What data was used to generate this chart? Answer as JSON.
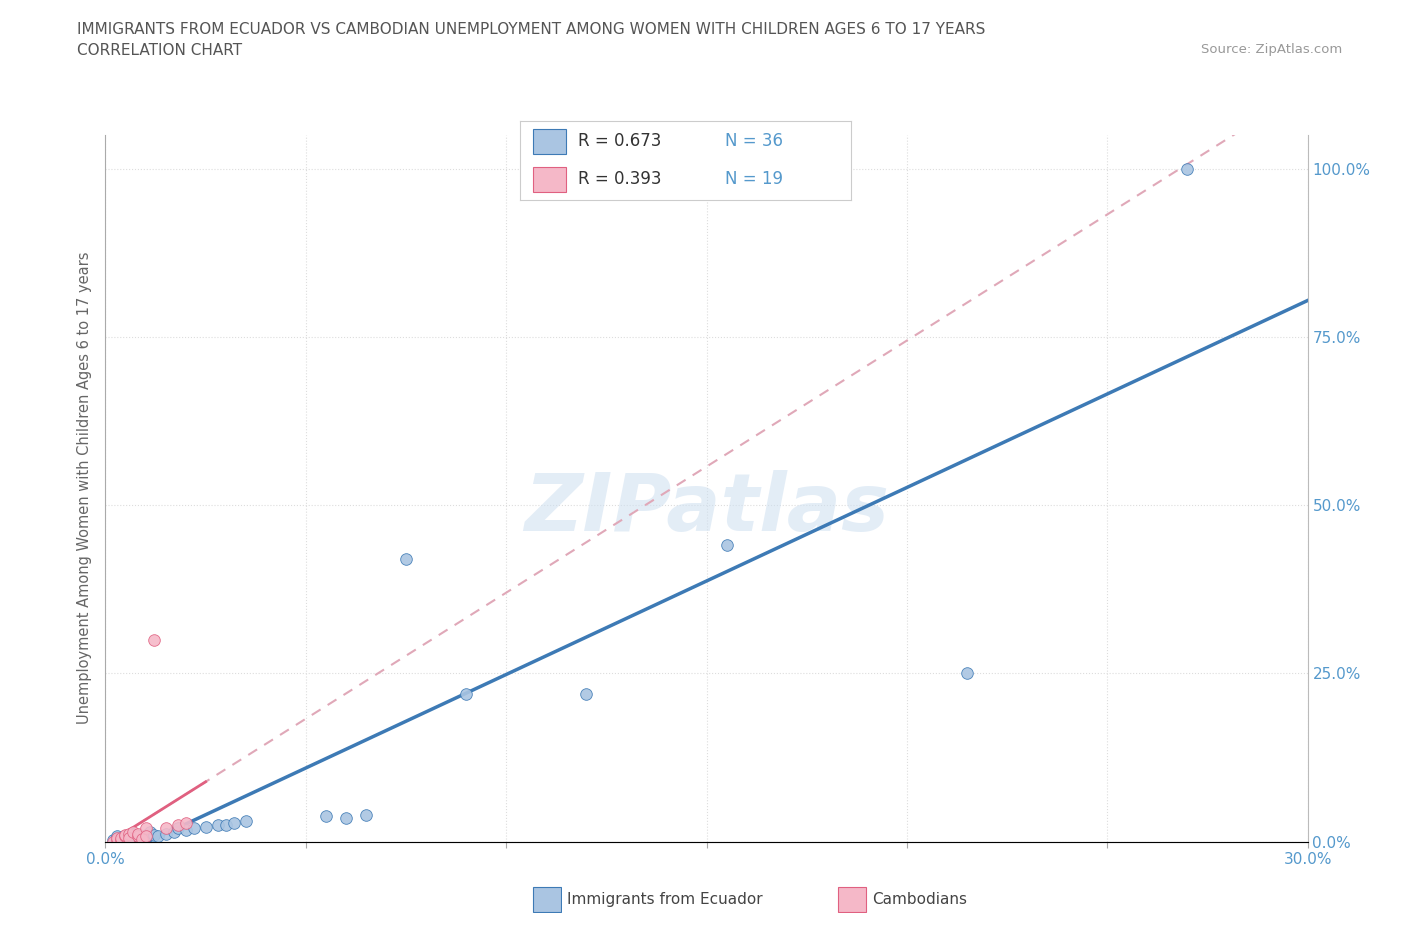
{
  "title_line1": "IMMIGRANTS FROM ECUADOR VS CAMBODIAN UNEMPLOYMENT AMONG WOMEN WITH CHILDREN AGES 6 TO 17 YEARS",
  "title_line2": "CORRELATION CHART",
  "source_text": "Source: ZipAtlas.com",
  "ylabel_label": "Unemployment Among Women with Children Ages 6 to 17 years",
  "watermark_text": "ZIPatlas",
  "ecuador_R": "0.673",
  "ecuador_N": "36",
  "cambodian_R": "0.393",
  "cambodian_N": "19",
  "ecuador_color": "#aac5e2",
  "cambodian_color": "#f5b8c8",
  "ecuador_line_color": "#3d7ab5",
  "cambodian_line_color": "#e06080",
  "dashed_line_color": "#e0a8b8",
  "xlim": [
    0.0,
    0.3
  ],
  "ylim": [
    0.0,
    1.05
  ],
  "x_tick_pos": [
    0.0,
    0.05,
    0.1,
    0.15,
    0.2,
    0.25,
    0.3
  ],
  "y_tick_pos": [
    0.0,
    0.25,
    0.5,
    0.75,
    1.0
  ],
  "x_tick_labels": [
    "0.0%",
    "",
    "",
    "",
    "",
    "",
    "30.0%"
  ],
  "y_tick_labels": [
    "0.0%",
    "25.0%",
    "50.0%",
    "75.0%",
    "100.0%"
  ],
  "background_color": "#ffffff",
  "grid_color": "#dddddd",
  "tick_label_color": "#5599cc",
  "ecuador_points": [
    [
      0.002,
      0.002
    ],
    [
      0.003,
      0.005
    ],
    [
      0.003,
      0.008
    ],
    [
      0.004,
      0.003
    ],
    [
      0.004,
      0.006
    ],
    [
      0.005,
      0.002
    ],
    [
      0.005,
      0.008
    ],
    [
      0.006,
      0.005
    ],
    [
      0.006,
      0.01
    ],
    [
      0.007,
      0.004
    ],
    [
      0.007,
      0.012
    ],
    [
      0.008,
      0.008
    ],
    [
      0.009,
      0.006
    ],
    [
      0.01,
      0.01
    ],
    [
      0.011,
      0.015
    ],
    [
      0.012,
      0.01
    ],
    [
      0.013,
      0.008
    ],
    [
      0.015,
      0.012
    ],
    [
      0.017,
      0.015
    ],
    [
      0.018,
      0.02
    ],
    [
      0.02,
      0.018
    ],
    [
      0.022,
      0.02
    ],
    [
      0.025,
      0.022
    ],
    [
      0.028,
      0.025
    ],
    [
      0.03,
      0.025
    ],
    [
      0.032,
      0.028
    ],
    [
      0.035,
      0.03
    ],
    [
      0.055,
      0.038
    ],
    [
      0.06,
      0.035
    ],
    [
      0.065,
      0.04
    ],
    [
      0.075,
      0.42
    ],
    [
      0.09,
      0.22
    ],
    [
      0.12,
      0.22
    ],
    [
      0.155,
      0.44
    ],
    [
      0.215,
      0.25
    ],
    [
      0.27,
      1.0
    ]
  ],
  "cambodian_points": [
    [
      0.002,
      0.0
    ],
    [
      0.003,
      0.003
    ],
    [
      0.003,
      0.006
    ],
    [
      0.004,
      0.002
    ],
    [
      0.004,
      0.005
    ],
    [
      0.005,
      0.008
    ],
    [
      0.005,
      0.01
    ],
    [
      0.006,
      0.012
    ],
    [
      0.006,
      0.005
    ],
    [
      0.007,
      0.015
    ],
    [
      0.008,
      0.008
    ],
    [
      0.008,
      0.012
    ],
    [
      0.009,
      0.004
    ],
    [
      0.01,
      0.02
    ],
    [
      0.01,
      0.008
    ],
    [
      0.012,
      0.3
    ],
    [
      0.015,
      0.02
    ],
    [
      0.018,
      0.025
    ],
    [
      0.02,
      0.028
    ]
  ]
}
